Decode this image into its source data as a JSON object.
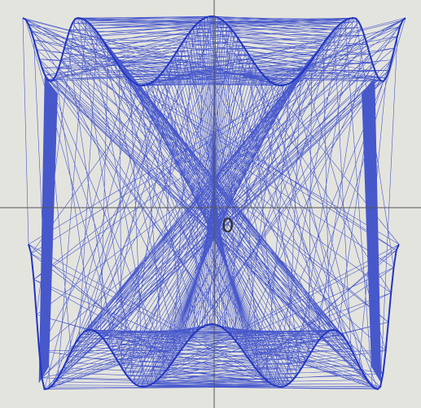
{
  "origin_label": "0"
}
